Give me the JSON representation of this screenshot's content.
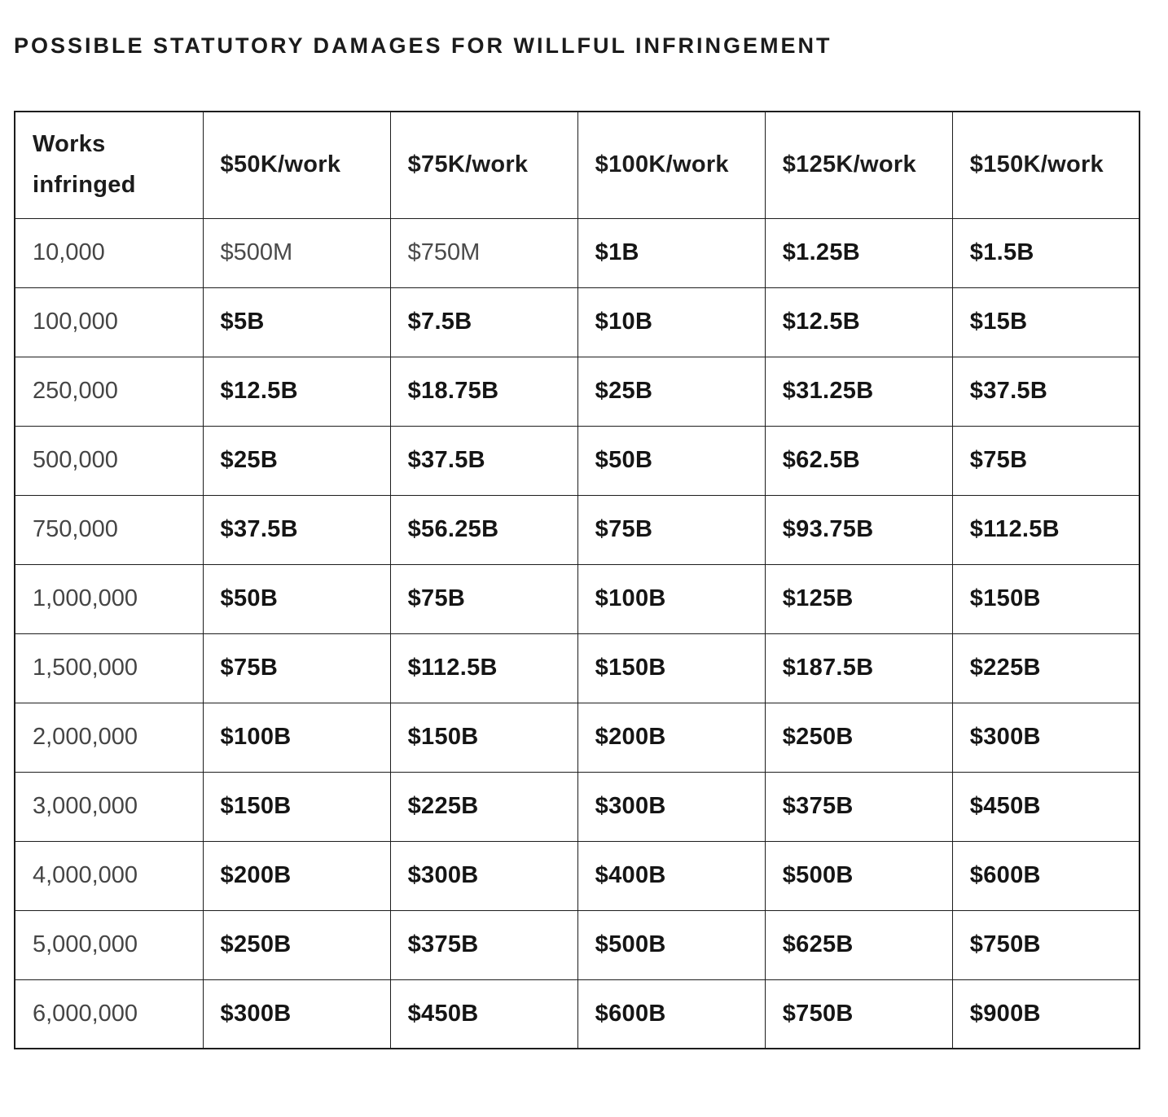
{
  "title": "POSSIBLE STATUTORY DAMAGES FOR WILLFUL INFRINGEMENT",
  "colors": {
    "background": "#ffffff",
    "border": "#1d1d1d",
    "title_text": "#1b1b1b",
    "value_bold_text": "#151515",
    "muted_text": "#4a4a4a"
  },
  "table": {
    "columns": [
      "Works infringed",
      "$50K/work",
      "$75K/work",
      "$100K/work",
      "$125K/work",
      "$150K/work"
    ],
    "rows": [
      {
        "works": "10,000",
        "values": [
          "$500M",
          "$750M",
          "$1B",
          "$1.25B",
          "$1.5B"
        ],
        "muted_cols": [
          0,
          1
        ]
      },
      {
        "works": "100,000",
        "values": [
          "$5B",
          "$7.5B",
          "$10B",
          "$12.5B",
          "$15B"
        ],
        "muted_cols": []
      },
      {
        "works": "250,000",
        "values": [
          "$12.5B",
          "$18.75B",
          "$25B",
          "$31.25B",
          "$37.5B"
        ],
        "muted_cols": []
      },
      {
        "works": "500,000",
        "values": [
          "$25B",
          "$37.5B",
          "$50B",
          "$62.5B",
          "$75B"
        ],
        "muted_cols": []
      },
      {
        "works": "750,000",
        "values": [
          "$37.5B",
          "$56.25B",
          "$75B",
          "$93.75B",
          "$112.5B"
        ],
        "muted_cols": []
      },
      {
        "works": "1,000,000",
        "values": [
          "$50B",
          "$75B",
          "$100B",
          "$125B",
          "$150B"
        ],
        "muted_cols": []
      },
      {
        "works": "1,500,000",
        "values": [
          "$75B",
          "$112.5B",
          "$150B",
          "$187.5B",
          "$225B"
        ],
        "muted_cols": []
      },
      {
        "works": "2,000,000",
        "values": [
          "$100B",
          "$150B",
          "$200B",
          "$250B",
          "$300B"
        ],
        "muted_cols": []
      },
      {
        "works": "3,000,000",
        "values": [
          "$150B",
          "$225B",
          "$300B",
          "$375B",
          "$450B"
        ],
        "muted_cols": []
      },
      {
        "works": "4,000,000",
        "values": [
          "$200B",
          "$300B",
          "$400B",
          "$500B",
          "$600B"
        ],
        "muted_cols": []
      },
      {
        "works": "5,000,000",
        "values": [
          "$250B",
          "$375B",
          "$500B",
          "$625B",
          "$750B"
        ],
        "muted_cols": []
      },
      {
        "works": "6,000,000",
        "values": [
          "$300B",
          "$450B",
          "$600B",
          "$750B",
          "$900B"
        ],
        "muted_cols": []
      }
    ]
  }
}
